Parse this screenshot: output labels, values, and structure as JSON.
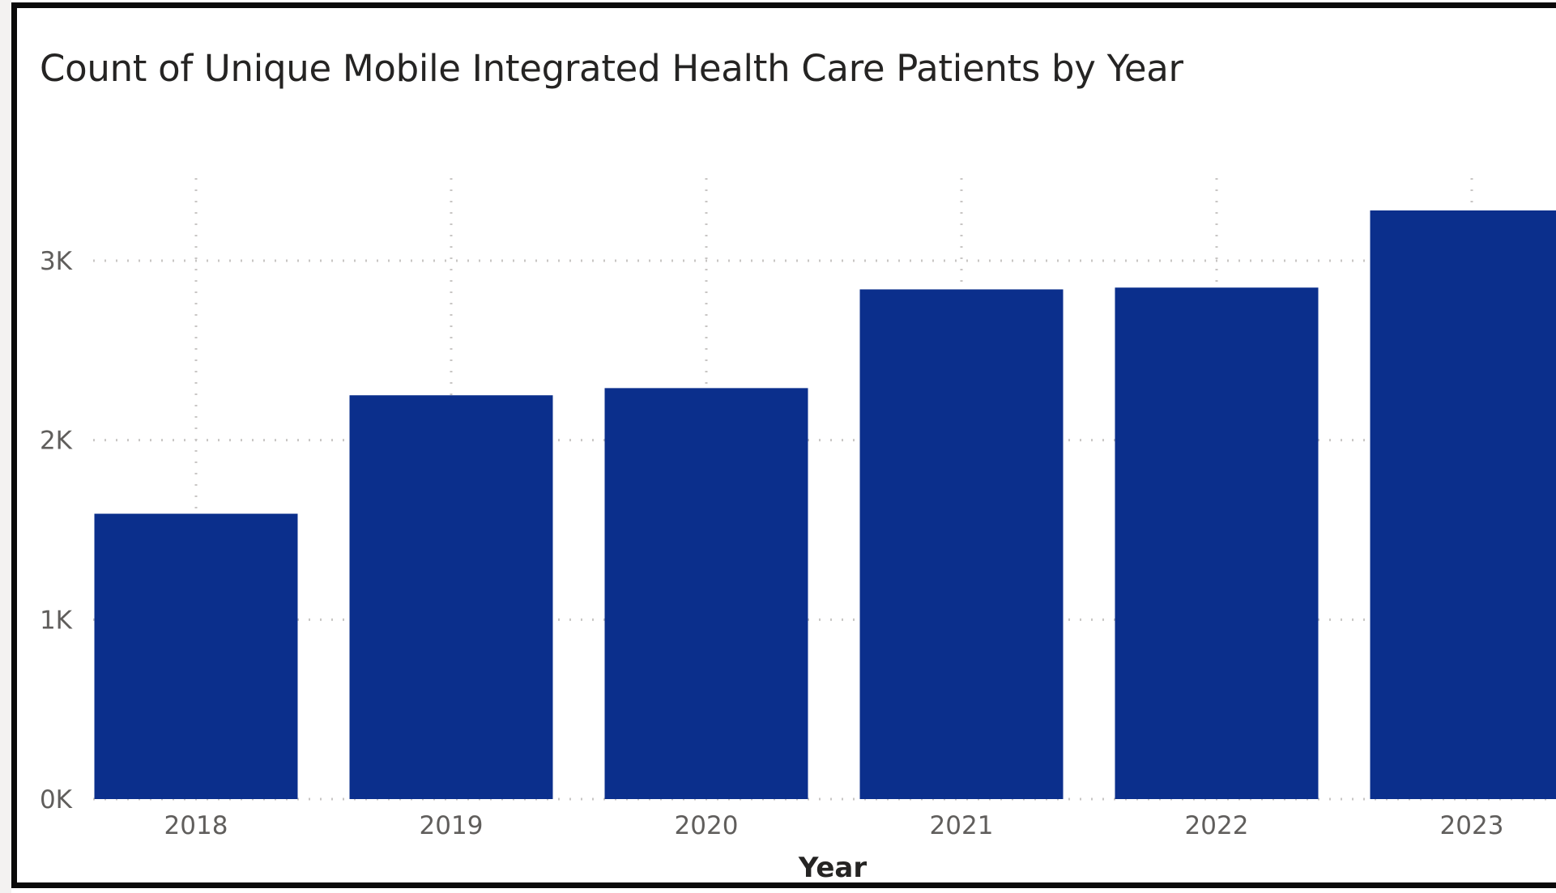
{
  "chart_data": {
    "type": "bar",
    "title": "Count of Unique Mobile Integrated Health Care Patients by Year",
    "xlabel": "Year",
    "ylabel": "",
    "categories": [
      "2018",
      "2019",
      "2020",
      "2021",
      "2022",
      "2023"
    ],
    "values": [
      1590,
      2250,
      2290,
      2840,
      2850,
      3280
    ],
    "ylim": [
      0,
      3460
    ],
    "yticks": [
      0,
      1000,
      2000,
      3000
    ],
    "ytick_labels": [
      "0K",
      "1K",
      "2K",
      "3K"
    ],
    "grid": "dotted gridlines (horizontal and vertical)",
    "bar_color": "#0b2f8c",
    "grid_color": "#c8c6c4"
  }
}
